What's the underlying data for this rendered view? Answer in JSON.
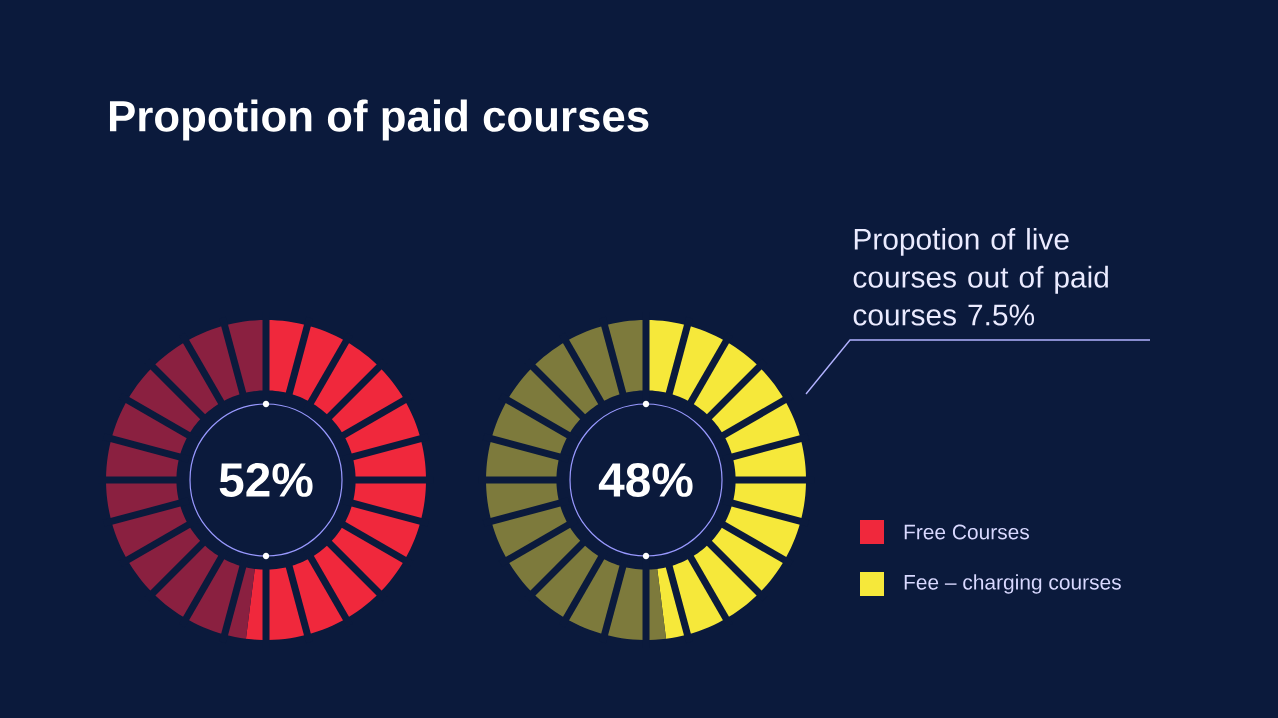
{
  "chart_data": [
    {
      "type": "donut",
      "title": "Propotion of paid courses",
      "categories": [
        "Free Courses",
        null
      ],
      "values": [
        52,
        48
      ],
      "colors": [
        "#f0283c",
        "#8a2040"
      ],
      "value_labels": [
        "52%",
        null
      ],
      "legend": "bottom right"
    },
    {
      "type": "donut",
      "categories": [
        "Fee – charging courses",
        null
      ],
      "values": [
        48,
        52
      ],
      "colors": [
        "#f6e83a",
        "#7d7a3c"
      ],
      "legend": "bottom right",
      "annotations": [
        "48%",
        "Propotion of live courses out of paid courses 7.5%"
      ]
    }
  ]
}
